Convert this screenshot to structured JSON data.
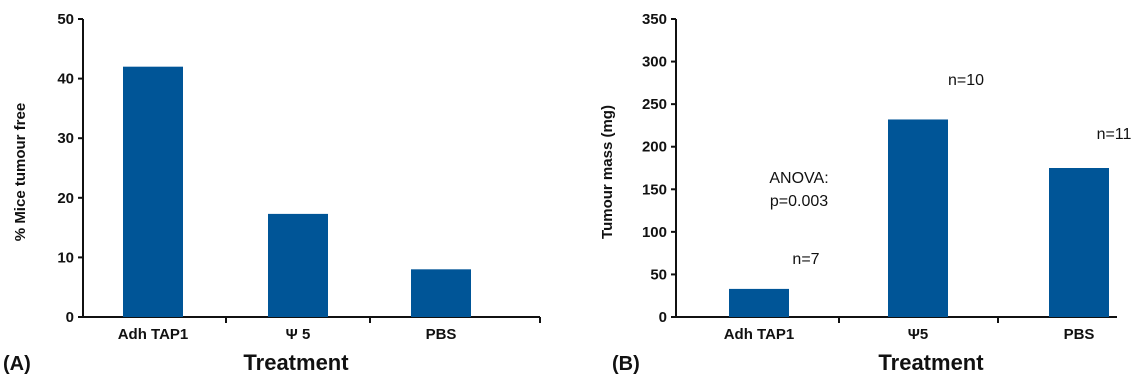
{
  "chart_data": [
    {
      "type": "bar",
      "panel_label": "(A)",
      "categories": [
        "Adh TAP1",
        "Ψ 5",
        "PBS"
      ],
      "values": [
        42,
        17.3,
        8
      ],
      "xlabel": "Treatment",
      "ylabel": "% Mice tumour free",
      "ylim": [
        0,
        50
      ],
      "yticks": [
        0,
        10,
        20,
        30,
        40,
        50
      ],
      "color": "#005597",
      "grid": false
    },
    {
      "type": "bar",
      "panel_label": "(B)",
      "categories": [
        "Adh TAP1",
        "Ψ5",
        "PBS"
      ],
      "values": [
        33,
        232,
        175
      ],
      "xlabel": "Treatment",
      "ylabel": "Tumour mass (mg)",
      "ylim": [
        0,
        350
      ],
      "yticks": [
        0,
        50,
        100,
        150,
        200,
        250,
        300,
        350
      ],
      "color": "#005597",
      "grid": false,
      "annotations": [
        "n=7",
        "n=10",
        "n=11",
        "ANOVA:",
        "p=0.003"
      ]
    }
  ]
}
